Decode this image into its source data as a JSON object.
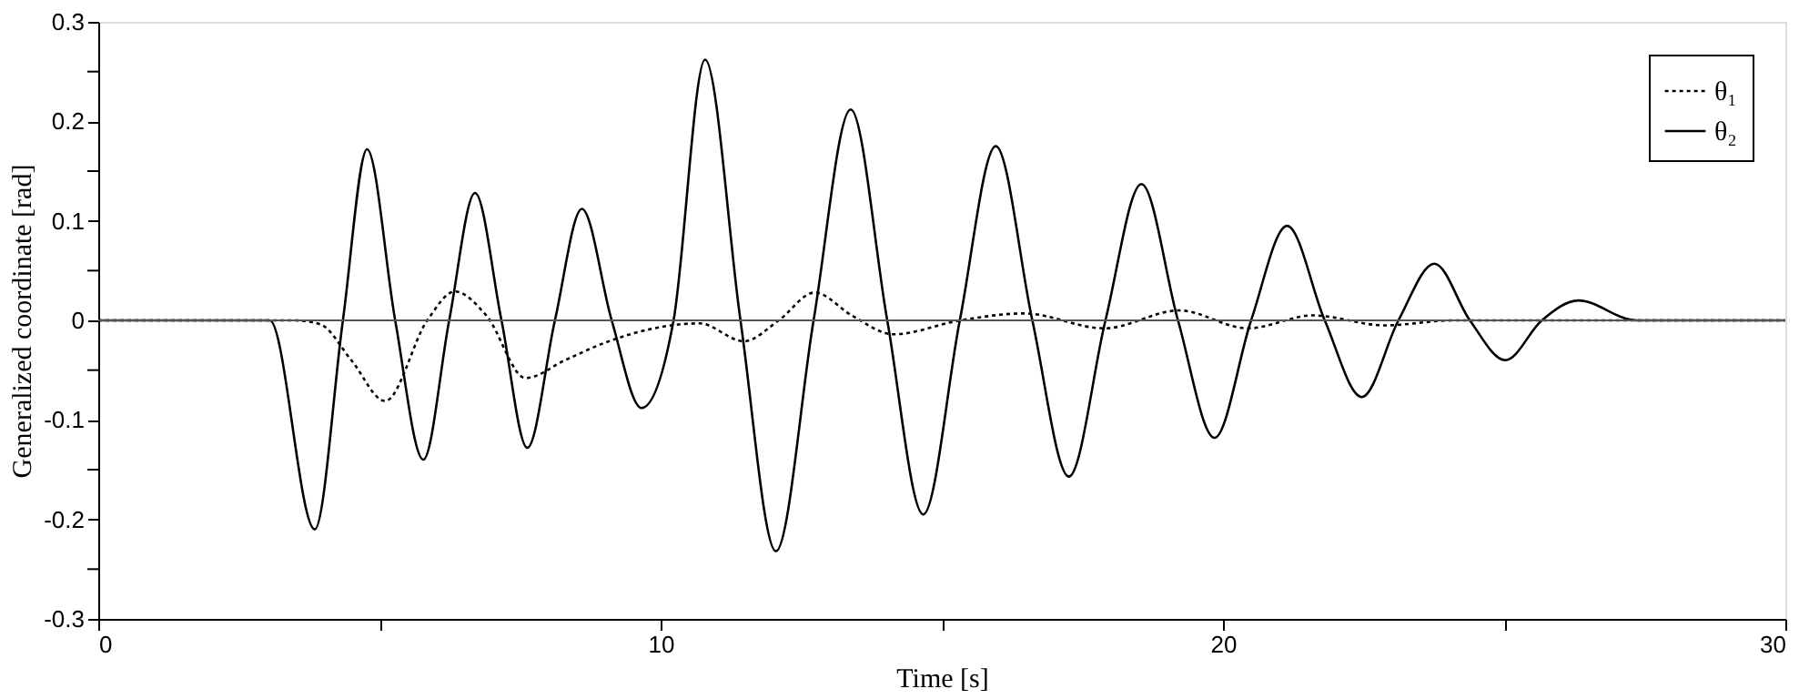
{
  "chart_data": {
    "type": "line",
    "xlabel": "Time [s]",
    "ylabel": "Generalized coordinate [rad]",
    "xlim": [
      0,
      30
    ],
    "ylim": [
      -0.3,
      0.3
    ],
    "xticks": [
      0,
      {
        "value": 5,
        "label": null
      },
      10,
      {
        "value": 15,
        "label": null
      },
      20,
      {
        "value": 25,
        "label": null
      },
      30
    ],
    "yticks": [
      -0.3,
      {
        "value": -0.25,
        "label": null
      },
      -0.2,
      {
        "value": -0.15,
        "label": null
      },
      -0.1,
      {
        "value": -0.05,
        "label": null
      },
      0,
      {
        "value": 0.05,
        "label": null
      },
      0.1,
      {
        "value": 0.15,
        "label": null
      },
      0.2,
      {
        "value": 0.25,
        "label": null
      },
      0.3
    ],
    "legend": "top right",
    "grid": false,
    "marker": "none",
    "ref_lines": [
      {
        "axis": "y",
        "value": 0,
        "color": "#555555"
      }
    ],
    "series": [
      {
        "name": "θ₁",
        "color": "#000000",
        "line_style": "dotted",
        "x": [
          0,
          3.5,
          3.95,
          4.5,
          5.1,
          5.85,
          6.34,
          6.9,
          7.6,
          8.3,
          9.03,
          10.69,
          11.48,
          12.1,
          12.74,
          13.4,
          14.14,
          15.33,
          16.46,
          17.89,
          19.22,
          20.44,
          21.6,
          22.87,
          24.1,
          30
        ],
        "values": [
          0,
          0,
          -0.004,
          -0.04,
          -0.081,
          0,
          0.029,
          0.005,
          -0.058,
          -0.04,
          -0.022,
          -0.003,
          -0.021,
          0,
          0.028,
          0.005,
          -0.014,
          0,
          0.007,
          -0.008,
          0.01,
          -0.008,
          0.005,
          -0.005,
          0,
          0
        ]
      },
      {
        "name": "θ₂",
        "color": "#000000",
        "line_style": "solid",
        "x": [
          0,
          3.05,
          3.85,
          4.35,
          4.78,
          5.28,
          5.78,
          6.24,
          6.7,
          7.17,
          7.63,
          8.12,
          8.6,
          9.13,
          9.66,
          10.23,
          10.79,
          11.42,
          12.05,
          12.72,
          13.38,
          14.03,
          14.67,
          15.32,
          15.96,
          16.61,
          17.26,
          17.91,
          18.55,
          19.2,
          19.85,
          20.5,
          21.14,
          21.81,
          22.47,
          23.12,
          23.76,
          24.39,
          25.02,
          25.67,
          26.32,
          27.35,
          30
        ],
        "values": [
          0,
          0,
          -0.21,
          0,
          0.172,
          0,
          -0.14,
          0,
          0.128,
          0,
          -0.128,
          0,
          0.112,
          0,
          -0.088,
          0,
          0.262,
          0,
          -0.232,
          0,
          0.212,
          0,
          -0.195,
          0,
          0.175,
          0,
          -0.157,
          0,
          0.137,
          0,
          -0.118,
          0,
          0.095,
          0,
          -0.077,
          0,
          0.057,
          0,
          -0.04,
          0,
          0.02,
          0,
          0
        ]
      }
    ]
  }
}
